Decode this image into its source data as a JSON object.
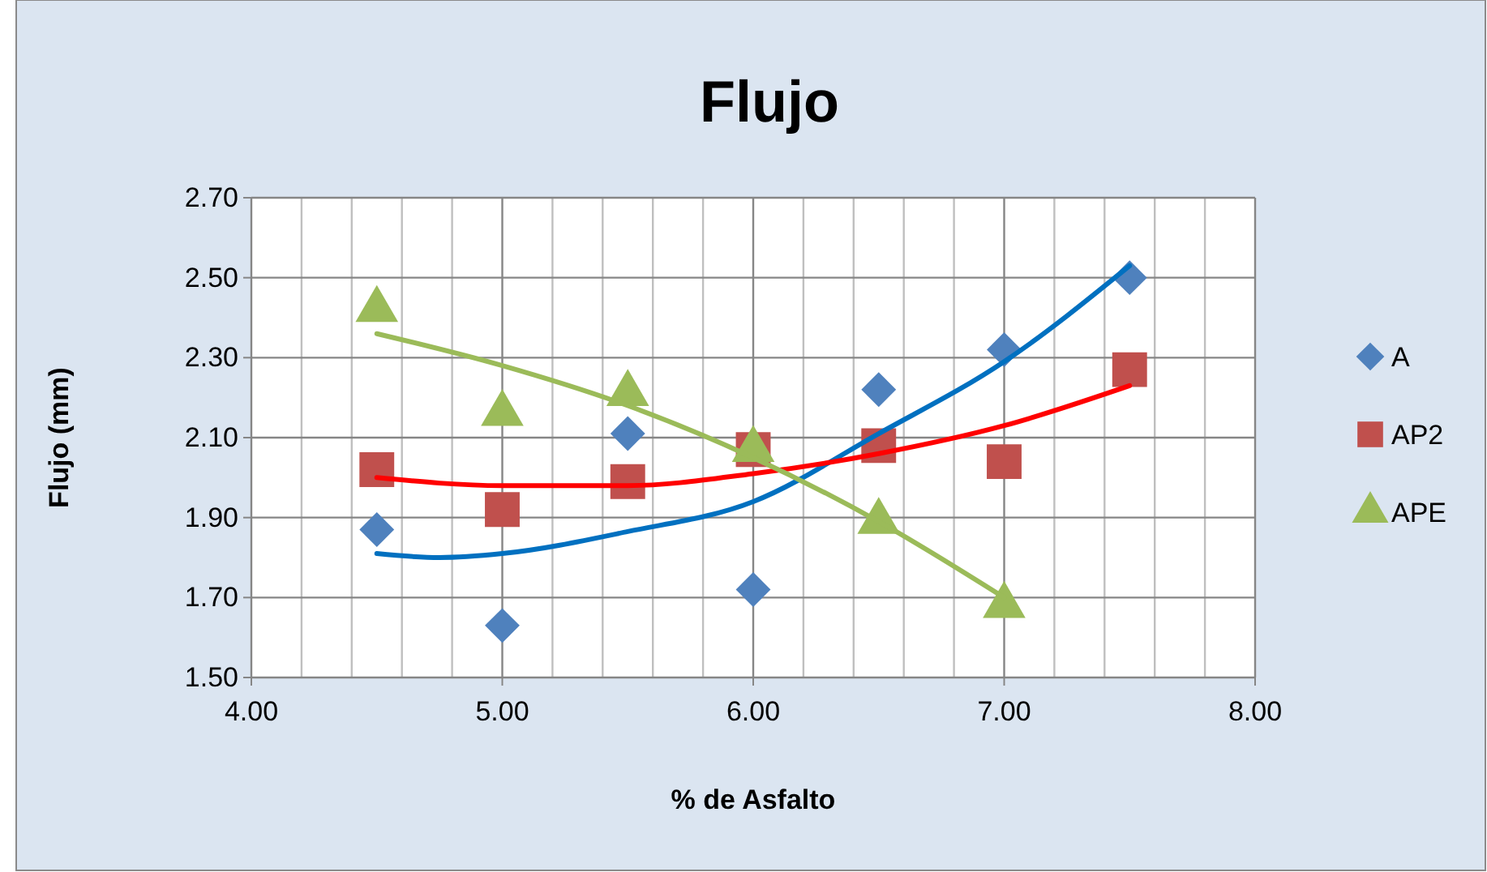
{
  "chart_data": {
    "type": "scatter",
    "title": "Flujo",
    "xlabel": "% de Asfalto",
    "ylabel": "Flujo (mm)",
    "xlim": [
      4,
      8
    ],
    "xticks": [
      {
        "value": 4,
        "label": "4.00"
      },
      {
        "value": 4.2,
        "label": null
      },
      {
        "value": 4.4,
        "label": null
      },
      {
        "value": 4.6,
        "label": null
      },
      {
        "value": 4.8,
        "label": null
      },
      {
        "value": 5,
        "label": "5.00"
      },
      {
        "value": 5.2,
        "label": null
      },
      {
        "value": 5.4,
        "label": null
      },
      {
        "value": 5.6,
        "label": null
      },
      {
        "value": 5.8,
        "label": null
      },
      {
        "value": 6,
        "label": "6.00"
      },
      {
        "value": 6.2,
        "label": null
      },
      {
        "value": 6.4,
        "label": null
      },
      {
        "value": 6.6,
        "label": null
      },
      {
        "value": 6.8,
        "label": null
      },
      {
        "value": 7,
        "label": "7.00"
      },
      {
        "value": 7.2,
        "label": null
      },
      {
        "value": 7.4,
        "label": null
      },
      {
        "value": 7.6,
        "label": null
      },
      {
        "value": 7.8,
        "label": null
      },
      {
        "value": 8,
        "label": "8.00"
      }
    ],
    "ylim": [
      1.5,
      2.7
    ],
    "yticks": [
      {
        "value": 1.5,
        "label": "1.50"
      },
      {
        "value": 1.7,
        "label": "1.70"
      },
      {
        "value": 1.9,
        "label": "1.90"
      },
      {
        "value": 2.1,
        "label": "2.10"
      },
      {
        "value": 2.3,
        "label": "2.30"
      },
      {
        "value": 2.5,
        "label": "2.50"
      },
      {
        "value": 2.7,
        "label": "2.70"
      }
    ],
    "grid": true,
    "legend": "right",
    "x": [
      4.5,
      5,
      5.5,
      6,
      6.5,
      7,
      7.5
    ],
    "series": [
      {
        "name": "A",
        "color": "#4f81bd",
        "marker": "diamond",
        "values": [
          1.87,
          1.63,
          2.11,
          1.72,
          2.22,
          2.32,
          2.5
        ]
      },
      {
        "name": "AP2",
        "color": "#c0504d",
        "marker": "square",
        "values": [
          2.02,
          1.92,
          1.99,
          2.07,
          2.08,
          2.04,
          2.27
        ]
      },
      {
        "name": "APE",
        "color": "#9bbb59",
        "marker": "triangle",
        "x": [
          4.5,
          5,
          5.5,
          6,
          6.5,
          7
        ],
        "values": [
          2.42,
          2.16,
          2.21,
          2.07,
          1.89,
          1.68
        ]
      },
      {
        "type": "line",
        "color": "#0070c0",
        "marker": "none",
        "x": [
          4.5,
          4.75,
          5,
          5.5,
          6,
          6.5,
          7,
          7.5
        ],
        "values": [
          1.81,
          1.8,
          1.81,
          1.865,
          1.94,
          2.11,
          2.29,
          2.53
        ]
      },
      {
        "type": "line",
        "color": "#ff0000",
        "marker": "none",
        "x": [
          4.5,
          5,
          5.5,
          6,
          6.5,
          7,
          7.5
        ],
        "values": [
          2.0,
          1.98,
          1.98,
          2.01,
          2.06,
          2.13,
          2.23
        ]
      },
      {
        "type": "line",
        "color": "#9bbb59",
        "marker": "none",
        "x": [
          4.5,
          5,
          5.5,
          6,
          6.5,
          7
        ],
        "values": [
          2.36,
          2.28,
          2.18,
          2.05,
          1.89,
          1.7
        ]
      }
    ]
  }
}
